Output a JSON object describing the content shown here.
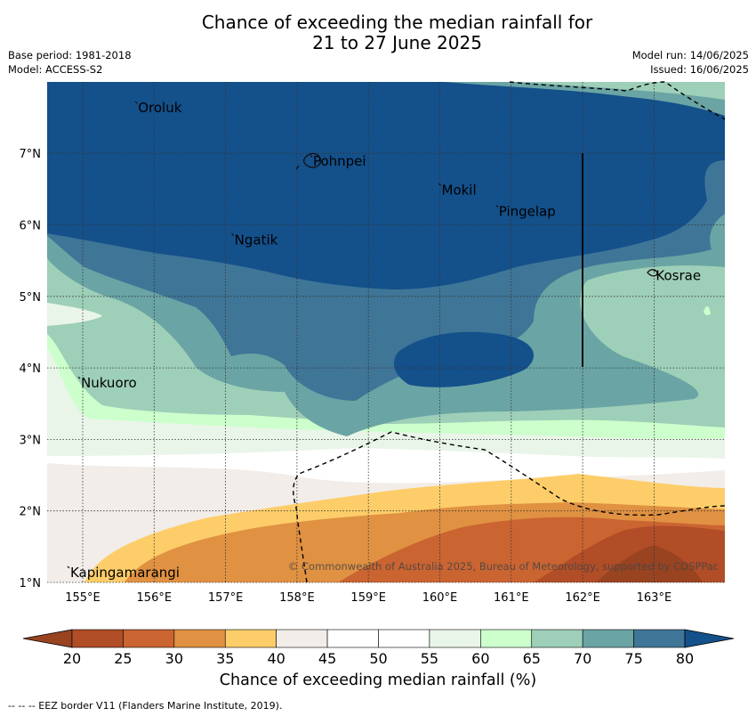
{
  "title_line1": "Chance of exceeding the median rainfall for",
  "title_line2": "21 to 27 June 2025",
  "base_period": "Base period: 1981-2018",
  "model": "Model: ACCESS-S2",
  "model_run": "Model run: 14/06/2025",
  "issued": "Issued: 16/06/2025",
  "copyright": "© Commonwealth of Australia 2025, Bureau of Meteorology, supported by COSPPac",
  "colorbar_label": "Chance of exceeding median rainfall (%)",
  "footnote": "--  --  -- EEZ border V11 (Flanders Marine Institute, 2019).",
  "map": {
    "lon_labels": [
      "155°E",
      "156°E",
      "157°E",
      "158°E",
      "159°E",
      "160°E",
      "161°E",
      "162°E",
      "163°E"
    ],
    "lat_labels": [
      "1°N",
      "2°N",
      "3°N",
      "4°N",
      "5°N",
      "6°N",
      "7°N"
    ],
    "places": [
      {
        "name": "Oroluk",
        "lon": 155.75,
        "lat": 7.65
      },
      {
        "name": "Pohnpei",
        "lon": 158.2,
        "lat": 6.9
      },
      {
        "name": "Mokil",
        "lon": 160.0,
        "lat": 6.5
      },
      {
        "name": "Pingelap",
        "lon": 160.8,
        "lat": 6.2
      },
      {
        "name": "Ngatik",
        "lon": 157.1,
        "lat": 5.8
      },
      {
        "name": "Kosrae",
        "lon": 163.0,
        "lat": 5.3
      },
      {
        "name": "Nukuoro",
        "lon": 154.95,
        "lat": 3.8
      },
      {
        "name": "Kapingamarangi",
        "lon": 154.8,
        "lat": 1.15
      }
    ],
    "eez_color": "#000000"
  },
  "colorbar": {
    "ticks": [
      "20",
      "25",
      "30",
      "35",
      "40",
      "45",
      "50",
      "55",
      "60",
      "65",
      "70",
      "75",
      "80"
    ],
    "colors": [
      "#994321",
      "#b14d27",
      "#ca6431",
      "#e09142",
      "#fdcd69",
      "#f2ede8",
      "#ffffff",
      "#ffffff",
      "#eaf5e9",
      "#ccffcc",
      "#9ecfb8",
      "#6aa4a4",
      "#3f7597",
      "#14508a"
    ]
  }
}
